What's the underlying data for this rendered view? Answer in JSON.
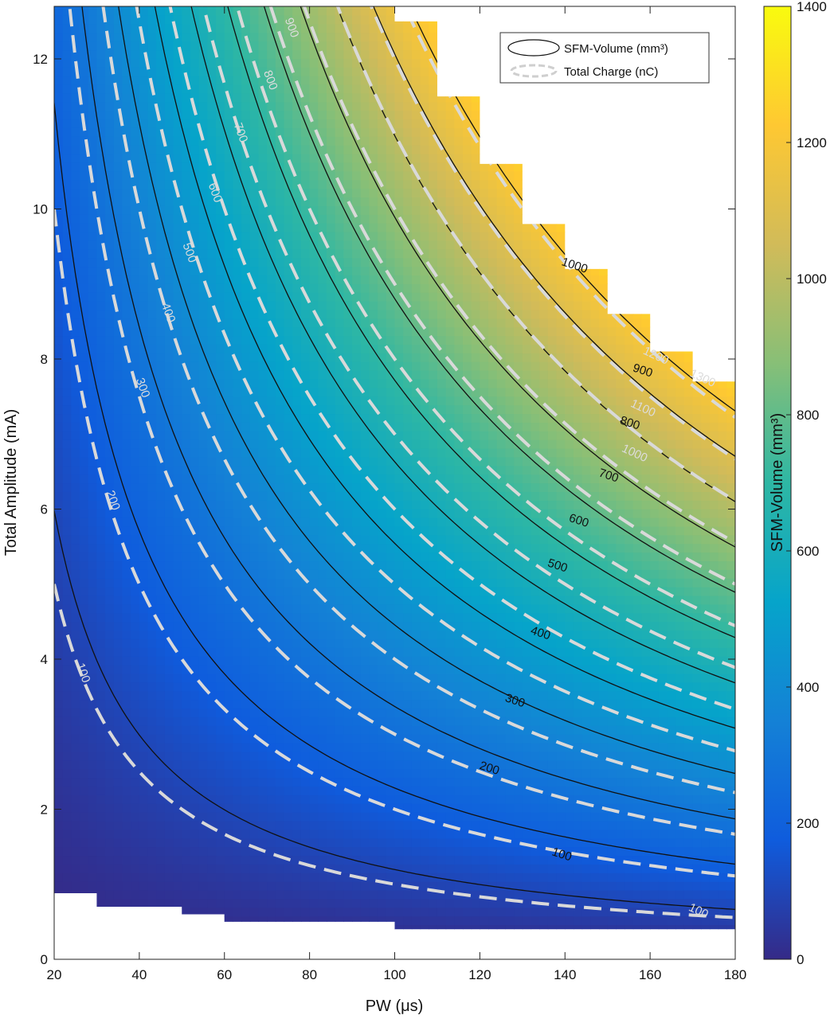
{
  "chart_data": {
    "type": "heatmap",
    "xlabel": "PW (μs)",
    "ylabel": "Total Amplitude (mA)",
    "xlim": [
      20,
      180
    ],
    "ylim": [
      0,
      12.7
    ],
    "xticks": [
      20,
      40,
      60,
      80,
      100,
      120,
      140,
      160,
      180
    ],
    "yticks": [
      0,
      2,
      4,
      6,
      8,
      10,
      12
    ],
    "colorbar": {
      "label": "SFM-Volume (mm³)",
      "range": [
        0,
        1400
      ],
      "ticks": [
        0,
        200,
        400,
        600,
        800,
        1000,
        1200,
        1400
      ],
      "colormap": [
        "#352a87",
        "#0f5cdd",
        "#1481d6",
        "#06a4ca",
        "#2eb7a4",
        "#87bf77",
        "#d1bb59",
        "#fec832",
        "#f9fb0e"
      ]
    },
    "legend": {
      "placement": "top-right",
      "entries": [
        {
          "label": "SFM-Volume (mm³)",
          "style": "solid-black"
        },
        {
          "label": "Total Charge (nC)",
          "style": "dashed-lightgray"
        }
      ]
    },
    "grid": false,
    "series": [
      {
        "name": "SFM-Volume (mm³)",
        "style": "solid",
        "levels": [
          100,
          200,
          300,
          400,
          500,
          600,
          700,
          800,
          900,
          1000,
          1100,
          1200,
          1300
        ]
      },
      {
        "name": "Total Charge (nC)",
        "style": "dashed",
        "levels": [
          100,
          200,
          300,
          400,
          500,
          600,
          700,
          800,
          900,
          1000,
          1100,
          1200,
          1300
        ]
      }
    ],
    "volume_contour_labels": [
      {
        "text": "100",
        "pw": 139,
        "amp": 1.35
      },
      {
        "text": "200",
        "pw": 122,
        "amp": 2.5
      },
      {
        "text": "300",
        "pw": 128,
        "amp": 3.4
      },
      {
        "text": "400",
        "pw": 134,
        "amp": 4.3
      },
      {
        "text": "500",
        "pw": 138,
        "amp": 5.2
      },
      {
        "text": "600",
        "pw": 143,
        "amp": 5.8
      },
      {
        "text": "700",
        "pw": 150,
        "amp": 6.4
      },
      {
        "text": "800",
        "pw": 155,
        "amp": 7.1
      },
      {
        "text": "900",
        "pw": 158,
        "amp": 7.8
      },
      {
        "text": "1000",
        "pw": 142,
        "amp": 9.2
      }
    ],
    "charge_contour_labels": [
      {
        "text": "100",
        "pw": 26,
        "amp": 3.8
      },
      {
        "text": "100",
        "pw": 171,
        "amp": 0.6
      },
      {
        "text": "200",
        "pw": 33,
        "amp": 6.1
      },
      {
        "text": "300",
        "pw": 40,
        "amp": 7.6
      },
      {
        "text": "400",
        "pw": 46,
        "amp": 8.6
      },
      {
        "text": "500",
        "pw": 51,
        "amp": 9.4
      },
      {
        "text": "600",
        "pw": 57,
        "amp": 10.2
      },
      {
        "text": "700",
        "pw": 63,
        "amp": 11.0
      },
      {
        "text": "800",
        "pw": 70,
        "amp": 11.7
      },
      {
        "text": "900",
        "pw": 75,
        "amp": 12.4
      },
      {
        "text": "1000",
        "pw": 156,
        "amp": 6.7
      },
      {
        "text": "1100",
        "pw": 158,
        "amp": 7.3
      },
      {
        "text": "1200",
        "pw": 161,
        "amp": 8.0
      },
      {
        "text": "1300",
        "pw": 172,
        "amp": 7.7
      }
    ],
    "valid_region_top": [
      {
        "pw_from": 100,
        "pw_to": 110,
        "amp": 12.5
      },
      {
        "pw_from": 110,
        "pw_to": 120,
        "amp": 11.5
      },
      {
        "pw_from": 120,
        "pw_to": 130,
        "amp": 10.6
      },
      {
        "pw_from": 130,
        "pw_to": 140,
        "amp": 9.8
      },
      {
        "pw_from": 140,
        "pw_to": 150,
        "amp": 9.2
      },
      {
        "pw_from": 150,
        "pw_to": 160,
        "amp": 8.6
      },
      {
        "pw_from": 160,
        "pw_to": 170,
        "amp": 8.1
      },
      {
        "pw_from": 170,
        "pw_to": 180,
        "amp": 7.7
      }
    ],
    "valid_region_bottom": [
      {
        "pw_from": 20,
        "pw_to": 30,
        "amp": 0.88
      },
      {
        "pw_from": 30,
        "pw_to": 50,
        "amp": 0.7
      },
      {
        "pw_from": 50,
        "pw_to": 60,
        "amp": 0.6
      },
      {
        "pw_from": 60,
        "pw_to": 100,
        "amp": 0.5
      },
      {
        "pw_from": 100,
        "pw_to": 180,
        "amp": 0.4
      }
    ]
  }
}
